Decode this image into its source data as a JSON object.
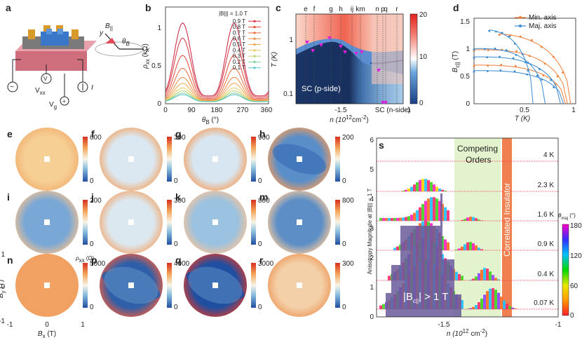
{
  "panel_letters": [
    "a",
    "b",
    "c",
    "d",
    "e",
    "f",
    "g",
    "h",
    "i",
    "j",
    "k",
    "m",
    "n",
    "p",
    "q",
    "r",
    "s"
  ],
  "a": {
    "b_par": "B",
    "b_par_sub": "||",
    "theta": "θ",
    "theta_sub": "B",
    "x": "x",
    "y": "y",
    "vxx": "V",
    "vxx_sub": "xx",
    "vg": "V",
    "vg_sub": "g",
    "i": "I",
    "v_circ": "V",
    "sym_ac": "~"
  },
  "b": {
    "ylabel": "ρ",
    "ylabel_sub": "xx",
    "ylabel_unit": " (kΩ)",
    "xlabel": "θ",
    "xlabel_sub": "B",
    "xlabel_unit": " (°)",
    "xticks": [
      "0",
      "90",
      "180",
      "270",
      "360"
    ],
    "yticks": [
      "0",
      "0.5",
      "1"
    ],
    "legend_title": "|B||| = 1.0 T",
    "legend": [
      "1.0 T",
      "0.9 T",
      "0.8 T",
      "0.7 T",
      "0.6 T",
      "0.5 T",
      "0.4 T",
      "0.3 T",
      "0.2 T",
      "0.1 T"
    ],
    "legend_colors": [
      "#c81e3c",
      "#d7303a",
      "#e24a3a",
      "#ea6a3e",
      "#ef8a44",
      "#f2a64f",
      "#e8c860",
      "#b5d36a",
      "#7ccda0",
      "#5cc8c8"
    ]
  },
  "c": {
    "letters": [
      "e",
      "f",
      "g",
      "h",
      "ij",
      "km",
      "n",
      "p",
      "q",
      "r"
    ],
    "ylabel": "T (K)",
    "xlabel": "n (10",
    "xlabel_sup": "12",
    "xlabel_tail": "cm",
    "xlabel_sup2": "-2",
    "xlabel_close": ")",
    "yticks": [
      "1",
      "0.1"
    ],
    "xticks": [
      "-1.5",
      "-1"
    ],
    "label_sc_p": "SC (p-side)",
    "label_sc_n": "SC (n-side)",
    "cbar_ticks": [
      "20",
      "10",
      "0"
    ]
  },
  "d": {
    "ylabel": "B",
    "ylabel_sub": "c||",
    "ylabel_unit": " (T)",
    "xlabel": "T (K)",
    "yticks": [
      "0",
      "0.5",
      "1",
      "1.5"
    ],
    "xticks": [
      "0.5",
      "1"
    ],
    "legend": [
      "Min. axis",
      "Maj. axis"
    ],
    "legend_colors": [
      "#f07f3a",
      "#3a8ad0"
    ]
  },
  "maps": [
    {
      "id": "e",
      "cbar": [
        "600",
        "0"
      ]
    },
    {
      "id": "f",
      "cbar": [
        "300",
        "0"
      ]
    },
    {
      "id": "g",
      "cbar": [
        "900",
        "0"
      ]
    },
    {
      "id": "h",
      "cbar": [
        "200",
        "0"
      ]
    },
    {
      "id": "i",
      "cbar": [
        "200",
        "0"
      ]
    },
    {
      "id": "j",
      "cbar": [
        "300",
        "0"
      ]
    },
    {
      "id": "k",
      "cbar": [
        "800",
        "0"
      ]
    },
    {
      "id": "m",
      "cbar": [
        "800",
        "0"
      ]
    },
    {
      "id": "n",
      "cbar": [
        "5000",
        "0"
      ],
      "cbar_label": "ρ",
      "cbar_label_sub": "xx",
      "cbar_label_unit": " (Ω)"
    },
    {
      "id": "p",
      "cbar": [
        "4000",
        "0"
      ]
    },
    {
      "id": "q",
      "cbar": [
        "3000",
        "0"
      ]
    },
    {
      "id": "r",
      "cbar": [
        "300",
        "0"
      ]
    }
  ],
  "map_axes": {
    "bx": "B",
    "bx_sub": "x",
    "bx_unit": " (T)",
    "by": "B",
    "by_sub": "y",
    "by_unit": " (T)",
    "ticks": [
      "-1",
      "0",
      "1"
    ]
  },
  "s": {
    "ylabel": "Anisotropy Magnitude at |B||| = 1 T",
    "xlabel": "n (10",
    "xlabel_sup": "12",
    "xlabel_tail": " cm",
    "xlabel_sup2": "-2",
    "xlabel_close": ")",
    "yticks": [
      "0",
      "1",
      "2",
      "3",
      "4",
      "5",
      "6"
    ],
    "xticks": [
      "-1.5",
      "-1"
    ],
    "temps": [
      "4 K",
      "2.3 K",
      "1.6 K",
      "0.9 K",
      "0.4 K",
      "0.07 K"
    ],
    "competing": "Competing",
    "orders": "Orders",
    "correlated": "Correlated Insulator",
    "bc_label": "|B",
    "bc_label_sub": "c||",
    "bc_label_tail": "| > 1 T",
    "cbar_title": "θ",
    "cbar_title_sub": "maj",
    "cbar_title_unit": " (°)",
    "cbar_ticks": [
      "180",
      "120",
      "60",
      "0"
    ]
  }
}
